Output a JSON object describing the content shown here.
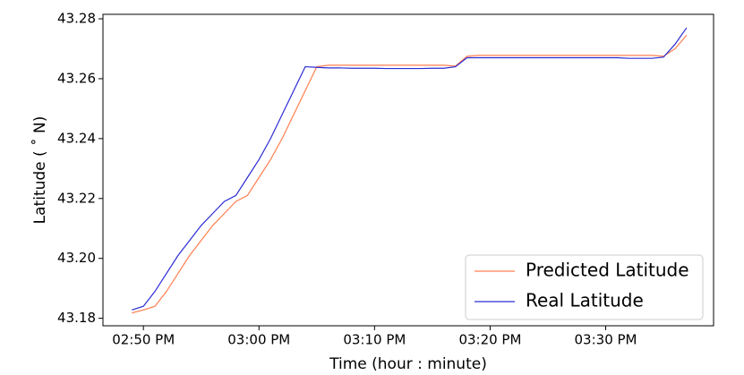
{
  "chart_data": {
    "type": "line",
    "x_label": "Time (hour : minute)",
    "y_label": "Latitude ($^\\circ$N)",
    "y_label_text": "Latitude ( ˚ N)",
    "x": [
      "14:49",
      "14:50",
      "14:51",
      "14:52",
      "14:53",
      "14:54",
      "14:55",
      "14:56",
      "14:57",
      "14:58",
      "14:59",
      "15:00",
      "15:01",
      "15:02",
      "15:03",
      "15:04",
      "15:05",
      "15:06",
      "15:07",
      "15:08",
      "15:09",
      "15:10",
      "15:11",
      "15:12",
      "15:13",
      "15:14",
      "15:15",
      "15:16",
      "15:17",
      "15:18",
      "15:19",
      "15:20",
      "15:21",
      "15:22",
      "15:23",
      "15:24",
      "15:25",
      "15:26",
      "15:27",
      "15:28",
      "15:29",
      "15:30",
      "15:31",
      "15:32",
      "15:33",
      "15:34",
      "15:35",
      "15:36",
      "15:37"
    ],
    "series": [
      {
        "name": "Predicted Latitude",
        "color": "#ff7f50",
        "values": [
          43.1818,
          43.1828,
          43.184,
          43.189,
          43.195,
          43.201,
          43.206,
          43.211,
          43.215,
          43.219,
          43.221,
          43.227,
          43.233,
          43.24,
          43.248,
          43.256,
          43.264,
          43.2645,
          43.2645,
          43.2645,
          43.2645,
          43.2645,
          43.2645,
          43.2645,
          43.2645,
          43.2645,
          43.2645,
          43.2645,
          43.2642,
          43.2675,
          43.2678,
          43.2678,
          43.2678,
          43.2678,
          43.2678,
          43.2678,
          43.2678,
          43.2678,
          43.2678,
          43.2678,
          43.2678,
          43.2678,
          43.2678,
          43.2678,
          43.2678,
          43.2678,
          43.2675,
          43.27,
          43.2745
        ]
      },
      {
        "name": "Real Latitude",
        "color": "#2b2bd6",
        "values": [
          43.1828,
          43.184,
          43.189,
          43.195,
          43.201,
          43.206,
          43.211,
          43.215,
          43.219,
          43.221,
          43.227,
          43.233,
          43.24,
          43.248,
          43.256,
          43.264,
          43.2638,
          43.2636,
          43.2636,
          43.2635,
          43.2635,
          43.2635,
          43.2634,
          43.2634,
          43.2634,
          43.2634,
          43.2635,
          43.2635,
          43.264,
          43.267,
          43.267,
          43.267,
          43.267,
          43.267,
          43.267,
          43.267,
          43.267,
          43.267,
          43.267,
          43.267,
          43.267,
          43.267,
          43.267,
          43.2668,
          43.2668,
          43.2668,
          43.2672,
          43.2715,
          43.277
        ]
      }
    ],
    "xlim": [
      "14:46:30",
      "15:39:20"
    ],
    "xticks": [
      {
        "value": "14:50",
        "label": "02:50 PM"
      },
      {
        "value": "15:00",
        "label": "03:00 PM"
      },
      {
        "value": "15:10",
        "label": "03:10 PM"
      },
      {
        "value": "15:20",
        "label": "03:20 PM"
      },
      {
        "value": "15:30",
        "label": "03:30 PM"
      }
    ],
    "ylim": [
      43.1775,
      43.2815
    ],
    "yticks": [
      43.18,
      {
        "value": 43.2,
        "label": "43.20"
      },
      43.22,
      43.24,
      43.26,
      43.28
    ],
    "legend": "lower right"
  }
}
